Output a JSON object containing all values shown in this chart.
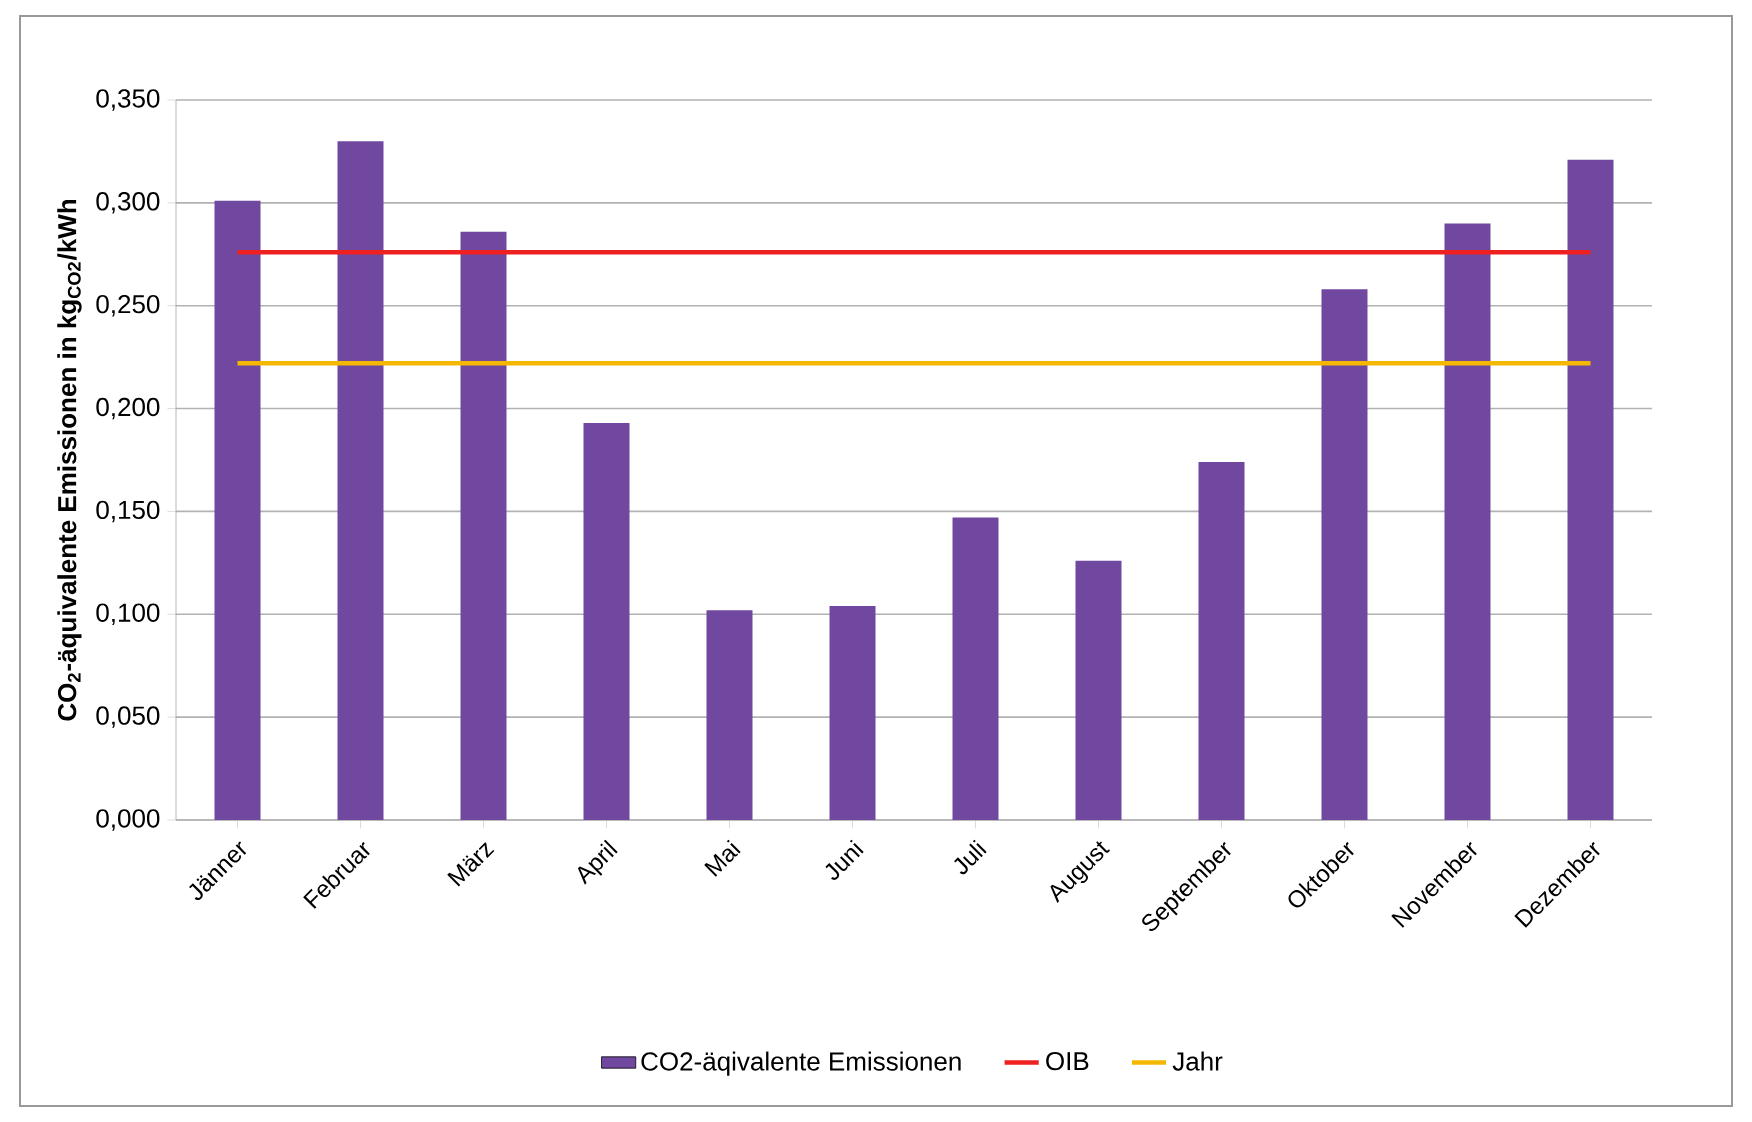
{
  "chart_data": {
    "type": "bar",
    "ylabel": "CO$_{2}$-äquivalente Emissionen in kg$_{CO2}$/kWh",
    "categories": [
      "Jänner",
      "Februar",
      "März",
      "April",
      "Mai",
      "Juni",
      "Juli",
      "August",
      "September",
      "Oktober",
      "November",
      "Dezember"
    ],
    "series": [
      {
        "name": "CO2-äqivalente Emissionen",
        "color": "#7048a0",
        "values": [
          0.301,
          0.33,
          0.286,
          0.193,
          0.102,
          0.104,
          0.147,
          0.126,
          0.174,
          0.258,
          0.29,
          0.321
        ]
      },
      {
        "name": "OIB",
        "type": "line",
        "color": "#ee2020",
        "values": [
          0.276,
          0.276,
          0.276,
          0.276,
          0.276,
          0.276,
          0.276,
          0.276,
          0.276,
          0.276,
          0.276,
          0.276
        ]
      },
      {
        "name": "Jahr",
        "type": "line",
        "color": "#f5b800",
        "values": [
          0.222,
          0.222,
          0.222,
          0.222,
          0.222,
          0.222,
          0.222,
          0.222,
          0.222,
          0.222,
          0.222,
          0.222
        ]
      }
    ],
    "ylim": [
      0,
      0.35
    ],
    "yticks": [
      {
        "value": 0,
        "label": "0,000"
      },
      {
        "value": 0.05,
        "label": "0,050"
      },
      {
        "value": 0.1,
        "label": "0,100"
      },
      {
        "value": 0.15,
        "label": "0,150"
      },
      {
        "value": 0.2,
        "label": "0,200"
      },
      {
        "value": 0.25,
        "label": "0,250"
      },
      {
        "value": 0.3,
        "label": "0,300"
      },
      {
        "value": 0.35,
        "label": "0,350"
      }
    ],
    "grid": "y",
    "legend": "bottom",
    "marker": "none",
    "line_style": "solid"
  }
}
